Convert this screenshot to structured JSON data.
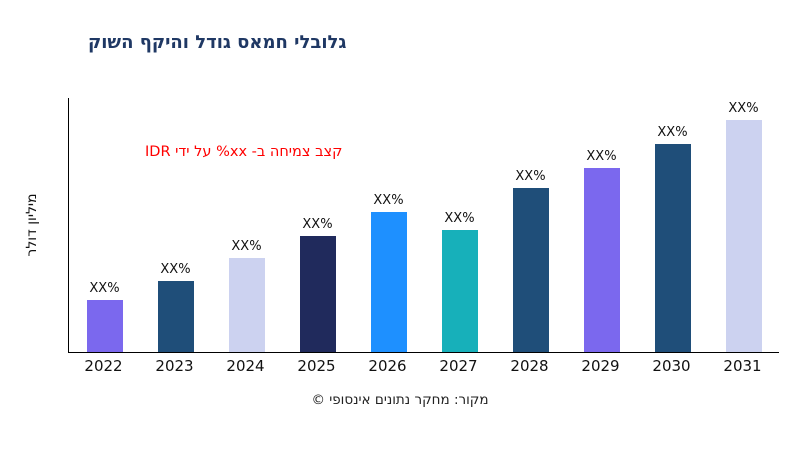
{
  "chart_data": {
    "type": "bar",
    "title": "גלובלי חמאס גודל והיקף השוק",
    "title_color": "#1f3864",
    "annotation": "קצב צמיחה ב- xx% על ידי IDR",
    "annotation_color": "#ff0000",
    "ylabel": "מיליון דולר",
    "xlabel": "",
    "source": "מקור: מחקר נתונים אינסופי ©",
    "categories": [
      "2022",
      "2023",
      "2024",
      "2025",
      "2026",
      "2027",
      "2028",
      "2029",
      "2030",
      "2031"
    ],
    "bar_labels": [
      "XX%",
      "XX%",
      "XX%",
      "XX%",
      "XX%",
      "XX%",
      "XX%",
      "XX%",
      "XX%",
      "XX%"
    ],
    "values": [
      52,
      71,
      94,
      116,
      140,
      122,
      164,
      184,
      208,
      232
    ],
    "values_note": "Bars are labeled only with 'XX%' placeholders; values are relative heights estimated from the plot (arbitrary units).",
    "ylim": [
      0,
      254
    ],
    "grid": false,
    "legend": false,
    "bar_colors": [
      "#7b68ee",
      "#1f4e79",
      "#ccd2f0",
      "#202a5c",
      "#1e90ff",
      "#17b0ba",
      "#1f4e79",
      "#7b68ee",
      "#1f4e79",
      "#ccd2f0"
    ],
    "axis_color": "#000000",
    "background": "#ffffff"
  }
}
